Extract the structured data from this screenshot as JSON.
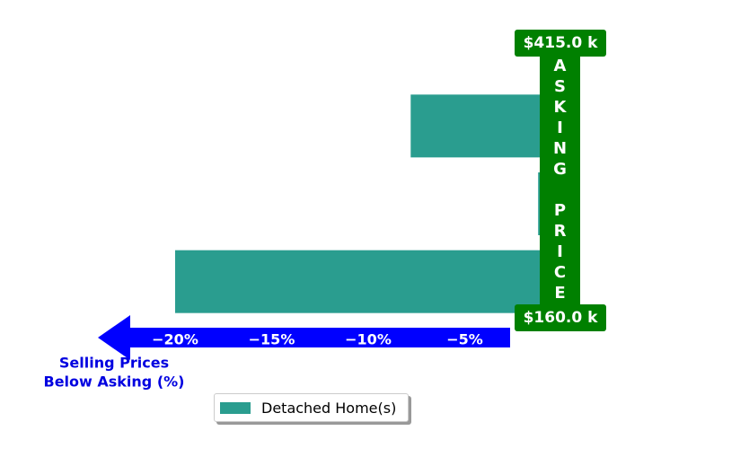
{
  "chart_data": {
    "type": "barh",
    "categories": [
      null,
      null,
      null
    ],
    "series": [
      {
        "name": "Detached Home(s)",
        "color": "#2a9d8f",
        "values": [
          -7.8,
          -1.2,
          -20.0
        ]
      }
    ],
    "xlim": [
      -24,
      0
    ],
    "xticks": [
      {
        "value": -20,
        "label": "−20%"
      },
      {
        "value": -15,
        "label": "−15%"
      },
      {
        "value": -10,
        "label": "−10%"
      },
      {
        "value": -5,
        "label": "−5%"
      }
    ],
    "xlabel": [
      "Selling Prices",
      "Below Asking (%)"
    ],
    "annotations": {
      "top_price": "$415.0 k",
      "bottom_price": "$160.0 k",
      "band": "ASKING PRICE"
    },
    "legend": "lower center"
  }
}
